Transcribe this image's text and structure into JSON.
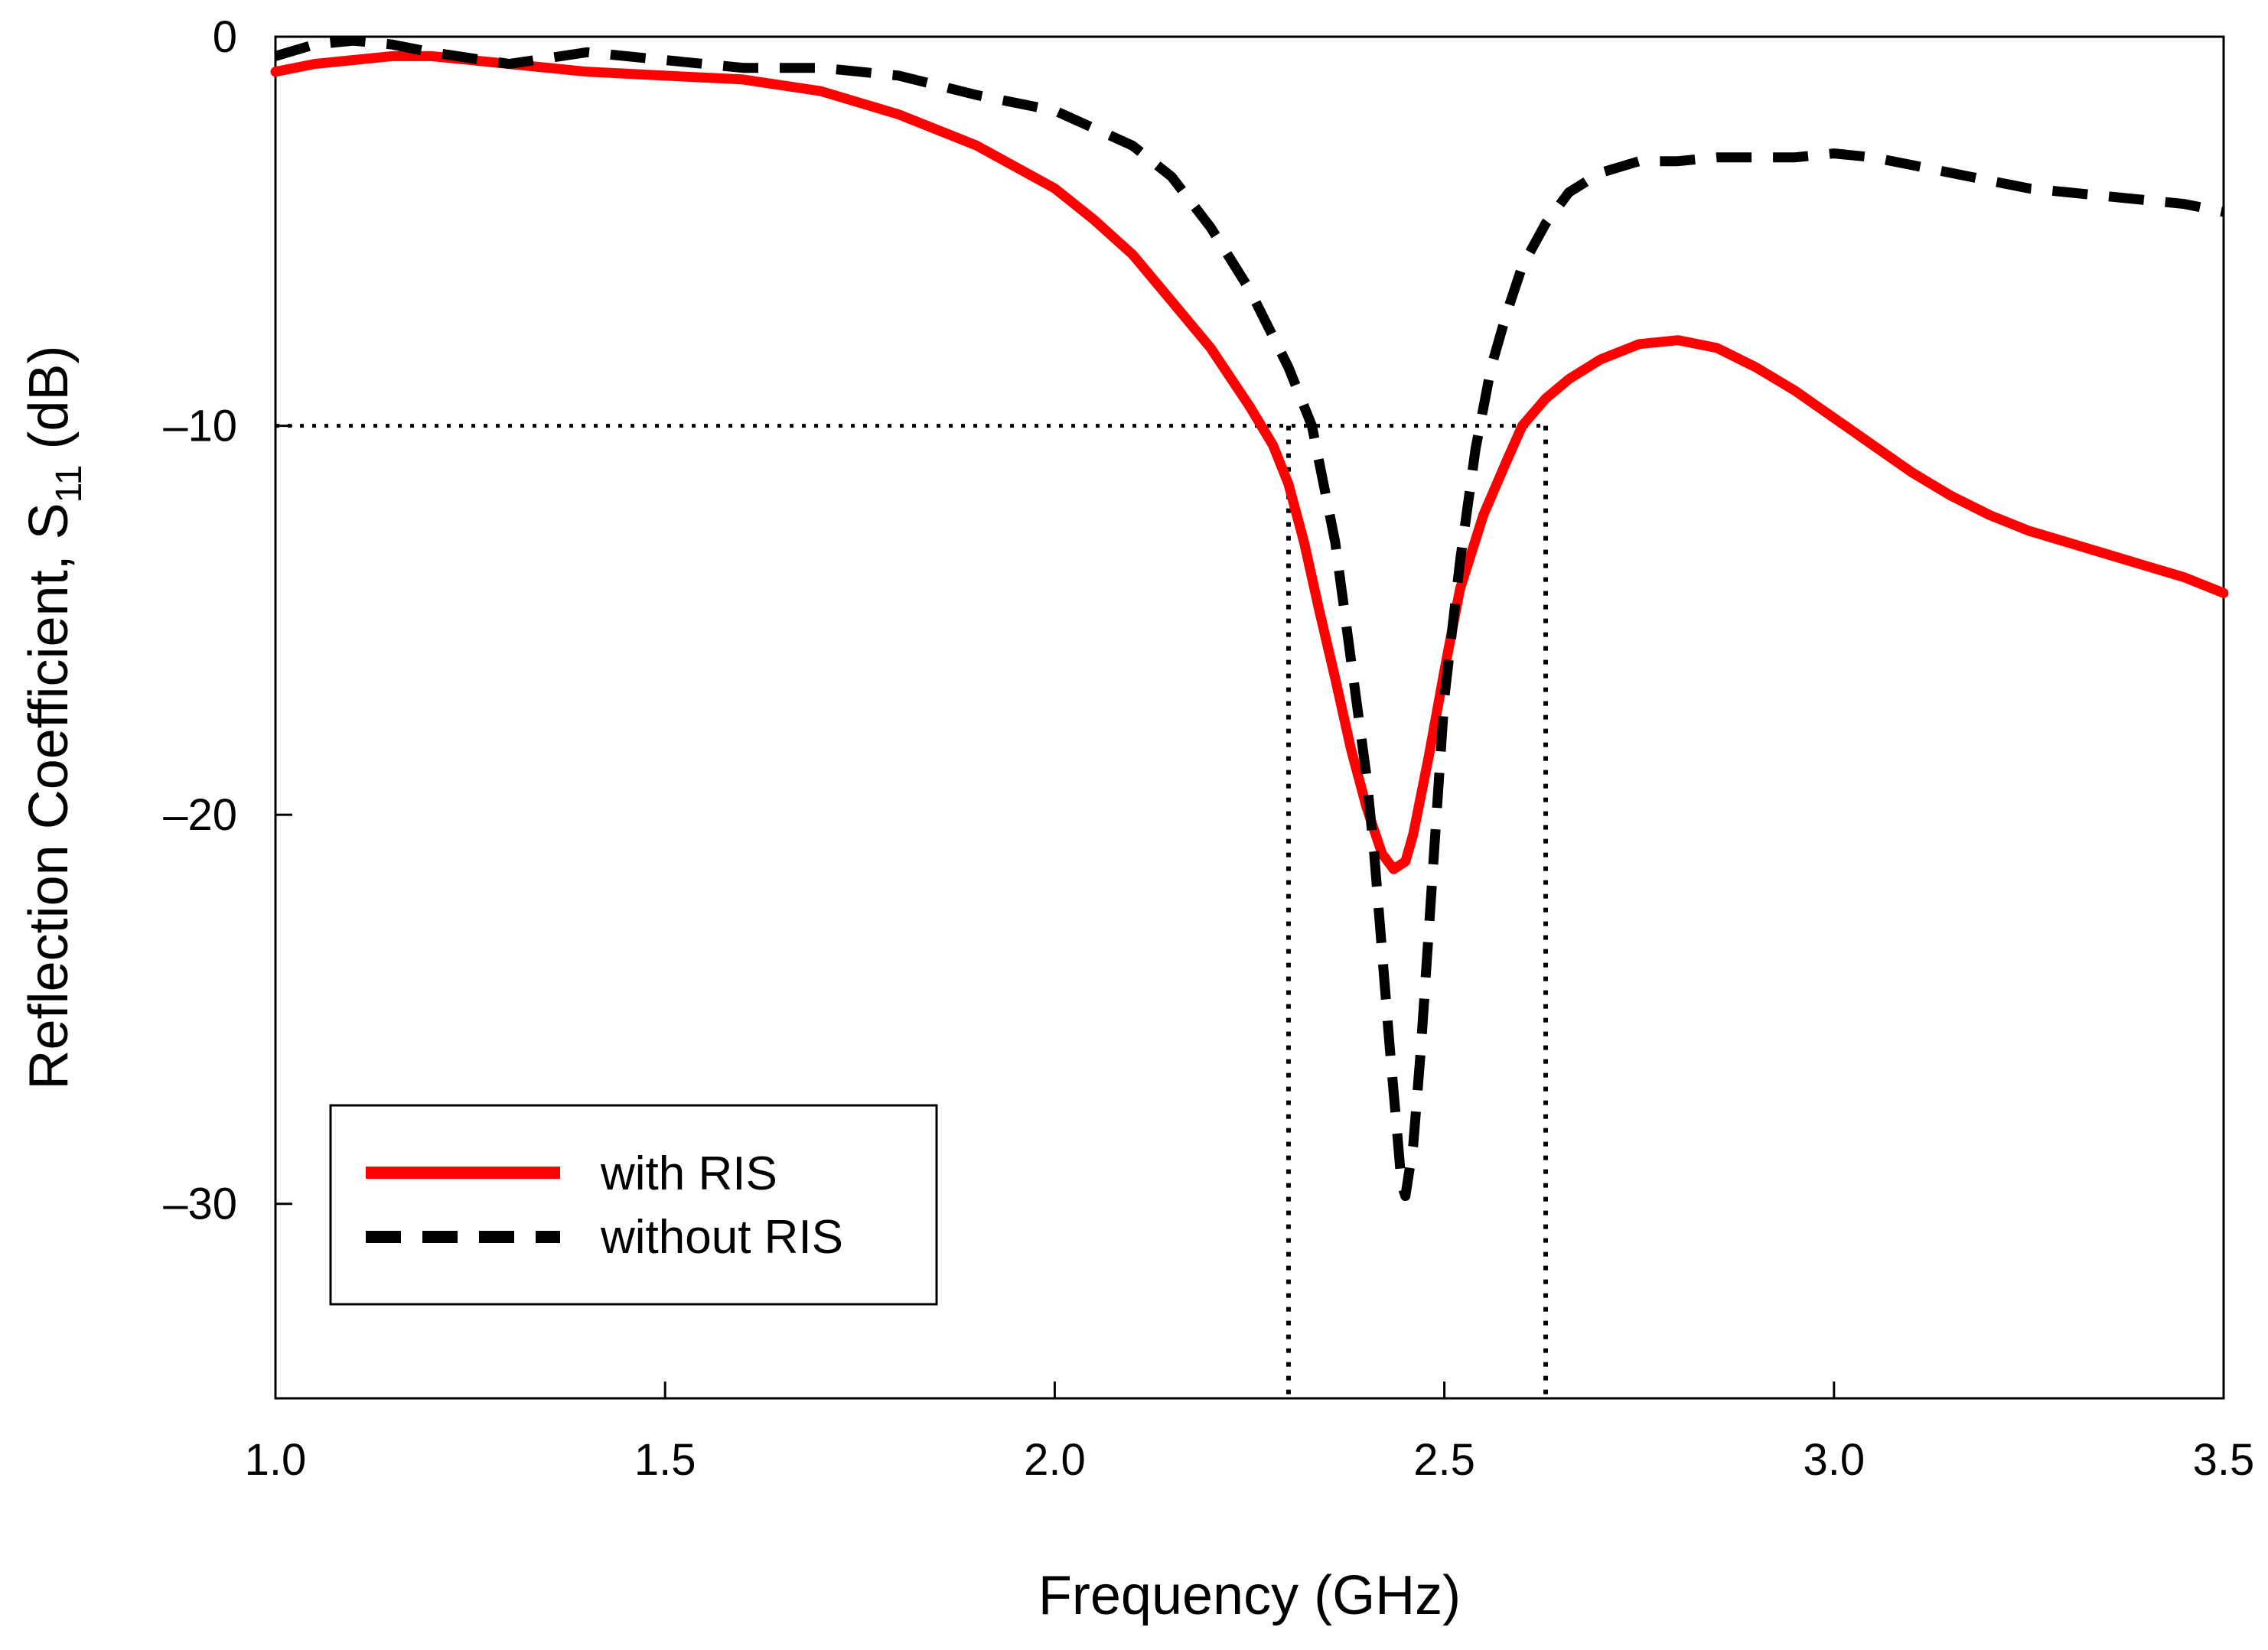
{
  "chart_data": {
    "type": "line",
    "title": "",
    "xlabel": "Frequency (GHz)",
    "ylabel_main": "Reflection Coefficient, S",
    "ylabel_sub": "11",
    "ylabel_unit": " (dB)",
    "xlim": [
      1.0,
      3.5
    ],
    "ylim": [
      -35,
      0
    ],
    "xticks": [
      1.0,
      1.5,
      2.0,
      2.5,
      3.0,
      3.5
    ],
    "xtick_labels": [
      "1.0",
      "1.5",
      "2.0",
      "2.5",
      "3.0",
      "3.5"
    ],
    "yticks": [
      0,
      -10,
      -20,
      -30
    ],
    "ytick_labels": [
      "0",
      "–10",
      "–20",
      "–30"
    ],
    "grid": false,
    "legend_position": "lower-left",
    "reference_level": -10,
    "reference_markers": [
      2.3,
      2.63
    ],
    "series": [
      {
        "name": "with RIS",
        "color": "#ff0000",
        "style": "solid",
        "x": [
          1.0,
          1.05,
          1.1,
          1.15,
          1.2,
          1.3,
          1.4,
          1.5,
          1.6,
          1.7,
          1.8,
          1.9,
          2.0,
          2.05,
          2.1,
          2.15,
          2.2,
          2.25,
          2.28,
          2.3,
          2.32,
          2.34,
          2.36,
          2.38,
          2.4,
          2.42,
          2.435,
          2.45,
          2.46,
          2.48,
          2.5,
          2.52,
          2.55,
          2.58,
          2.6,
          2.63,
          2.66,
          2.7,
          2.75,
          2.8,
          2.85,
          2.9,
          2.95,
          3.0,
          3.05,
          3.1,
          3.15,
          3.2,
          3.25,
          3.3,
          3.35,
          3.4,
          3.45,
          3.5
        ],
        "y": [
          -0.9,
          -0.7,
          -0.6,
          -0.5,
          -0.5,
          -0.7,
          -0.9,
          -1.0,
          -1.1,
          -1.4,
          -2.0,
          -2.8,
          -3.9,
          -4.7,
          -5.6,
          -6.8,
          -8.0,
          -9.5,
          -10.5,
          -11.5,
          -13.0,
          -14.8,
          -16.5,
          -18.3,
          -19.8,
          -21.0,
          -21.4,
          -21.2,
          -20.5,
          -18.5,
          -16.3,
          -14.2,
          -12.3,
          -10.9,
          -10.0,
          -9.3,
          -8.8,
          -8.3,
          -7.9,
          -7.8,
          -8.0,
          -8.5,
          -9.1,
          -9.8,
          -10.5,
          -11.2,
          -11.8,
          -12.3,
          -12.7,
          -13.0,
          -13.3,
          -13.6,
          -13.9,
          -14.3
        ]
      },
      {
        "name": "without RIS",
        "color": "#000000",
        "style": "dashed",
        "x": [
          1.0,
          1.05,
          1.1,
          1.15,
          1.2,
          1.3,
          1.4,
          1.5,
          1.6,
          1.7,
          1.8,
          1.9,
          2.0,
          2.1,
          2.15,
          2.2,
          2.25,
          2.3,
          2.33,
          2.36,
          2.38,
          2.4,
          2.41,
          2.42,
          2.43,
          2.44,
          2.445,
          2.45,
          2.46,
          2.47,
          2.48,
          2.49,
          2.5,
          2.52,
          2.54,
          2.56,
          2.58,
          2.6,
          2.63,
          2.66,
          2.7,
          2.75,
          2.8,
          2.85,
          2.9,
          2.95,
          3.0,
          3.05,
          3.1,
          3.15,
          3.2,
          3.25,
          3.3,
          3.35,
          3.4,
          3.45,
          3.5
        ],
        "y": [
          -0.5,
          -0.2,
          -0.1,
          -0.2,
          -0.4,
          -0.7,
          -0.4,
          -0.6,
          -0.8,
          -0.8,
          -1.0,
          -1.5,
          -1.9,
          -2.8,
          -3.6,
          -4.9,
          -6.5,
          -8.5,
          -10.0,
          -13.0,
          -16.0,
          -19.0,
          -21.0,
          -23.5,
          -26.0,
          -28.3,
          -29.5,
          -29.8,
          -28.5,
          -26.0,
          -23.0,
          -20.0,
          -17.0,
          -13.5,
          -10.6,
          -8.5,
          -7.1,
          -5.9,
          -4.8,
          -4.0,
          -3.5,
          -3.2,
          -3.2,
          -3.1,
          -3.1,
          -3.1,
          -3.0,
          -3.1,
          -3.3,
          -3.5,
          -3.7,
          -3.9,
          -4.0,
          -4.1,
          -4.2,
          -4.3,
          -4.5
        ]
      }
    ]
  }
}
